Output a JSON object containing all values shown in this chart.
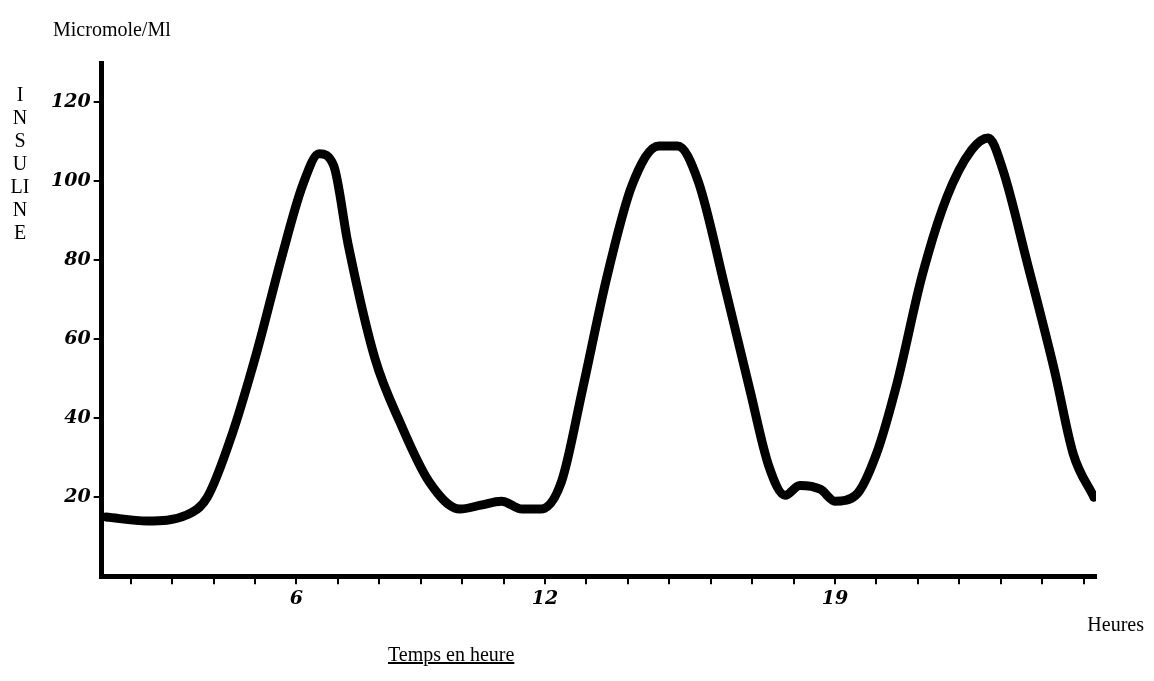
{
  "chart_data": {
    "type": "line",
    "ylabel": "INSULINE",
    "xlabel": "Heures",
    "annotations": [
      "Micromole/Ml",
      "Temps en heure"
    ],
    "xlim": [
      1.3,
      25.3
    ],
    "ylim": [
      0,
      130
    ],
    "xticks": [
      {
        "value": 2,
        "label": null
      },
      {
        "value": 3,
        "label": null
      },
      {
        "value": 4,
        "label": null
      },
      {
        "value": 5,
        "label": null
      },
      6,
      {
        "value": 7,
        "label": null
      },
      {
        "value": 8,
        "label": null
      },
      {
        "value": 9,
        "label": null
      },
      {
        "value": 10,
        "label": null
      },
      {
        "value": 11,
        "label": null
      },
      12,
      {
        "value": 13,
        "label": null
      },
      {
        "value": 14,
        "label": null
      },
      {
        "value": 15,
        "label": null
      },
      {
        "value": 16,
        "label": null
      },
      {
        "value": 17,
        "label": null
      },
      {
        "value": 18,
        "label": null
      },
      19,
      {
        "value": 20,
        "label": null
      },
      {
        "value": 21,
        "label": null
      },
      {
        "value": 22,
        "label": null
      },
      {
        "value": 23,
        "label": null
      },
      {
        "value": 24,
        "label": null
      },
      {
        "value": 25,
        "label": null
      }
    ],
    "yticks": [
      20,
      40,
      60,
      80,
      100,
      120
    ],
    "series": [
      {
        "color": "#000000",
        "x": [
          1.4,
          2.4,
          3.35,
          3.85,
          4.45,
          5.05,
          5.65,
          6.15,
          6.55,
          6.9,
          7.25,
          7.9,
          8.5,
          9.2,
          9.95,
          10.45,
          10.95,
          11.45,
          11.9,
          12.4,
          12.9,
          13.5,
          14.1,
          14.75,
          15.2,
          15.7,
          16.35,
          16.95,
          17.4,
          17.8,
          18.15,
          18.65,
          19,
          19.5,
          20,
          20.5,
          21.1,
          21.7,
          22.3,
          22.7,
          23.05,
          23.65,
          24.3,
          24.75,
          25.25
        ],
        "values": [
          15,
          14,
          15.5,
          20,
          36,
          57,
          81,
          99,
          107,
          104,
          84,
          55,
          39,
          24,
          17,
          18,
          19,
          17,
          17,
          24,
          47,
          76,
          99,
          109,
          109,
          100,
          73,
          47,
          28,
          20.5,
          23,
          22,
          19,
          20.5,
          31,
          49,
          76,
          96,
          108,
          111,
          103,
          79,
          52,
          31,
          20
        ]
      }
    ]
  }
}
